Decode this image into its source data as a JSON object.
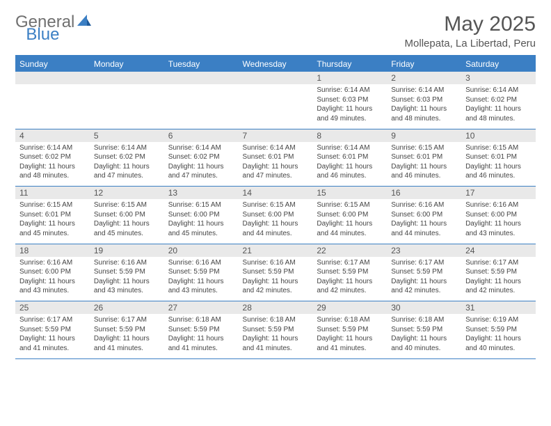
{
  "logo": {
    "gray": "General",
    "blue": "Blue"
  },
  "title": "May 2025",
  "location": "Mollepata, La Libertad, Peru",
  "colors": {
    "accent": "#3b7fc4",
    "header_text": "#ffffff",
    "daynum_bg": "#e9e9e9",
    "text": "#444444",
    "title_text": "#555555"
  },
  "day_headers": [
    "Sunday",
    "Monday",
    "Tuesday",
    "Wednesday",
    "Thursday",
    "Friday",
    "Saturday"
  ],
  "weeks": [
    [
      null,
      null,
      null,
      null,
      {
        "n": "1",
        "sr": "Sunrise: 6:14 AM",
        "ss": "Sunset: 6:03 PM",
        "dl1": "Daylight: 11 hours",
        "dl2": "and 49 minutes."
      },
      {
        "n": "2",
        "sr": "Sunrise: 6:14 AM",
        "ss": "Sunset: 6:03 PM",
        "dl1": "Daylight: 11 hours",
        "dl2": "and 48 minutes."
      },
      {
        "n": "3",
        "sr": "Sunrise: 6:14 AM",
        "ss": "Sunset: 6:02 PM",
        "dl1": "Daylight: 11 hours",
        "dl2": "and 48 minutes."
      }
    ],
    [
      {
        "n": "4",
        "sr": "Sunrise: 6:14 AM",
        "ss": "Sunset: 6:02 PM",
        "dl1": "Daylight: 11 hours",
        "dl2": "and 48 minutes."
      },
      {
        "n": "5",
        "sr": "Sunrise: 6:14 AM",
        "ss": "Sunset: 6:02 PM",
        "dl1": "Daylight: 11 hours",
        "dl2": "and 47 minutes."
      },
      {
        "n": "6",
        "sr": "Sunrise: 6:14 AM",
        "ss": "Sunset: 6:02 PM",
        "dl1": "Daylight: 11 hours",
        "dl2": "and 47 minutes."
      },
      {
        "n": "7",
        "sr": "Sunrise: 6:14 AM",
        "ss": "Sunset: 6:01 PM",
        "dl1": "Daylight: 11 hours",
        "dl2": "and 47 minutes."
      },
      {
        "n": "8",
        "sr": "Sunrise: 6:14 AM",
        "ss": "Sunset: 6:01 PM",
        "dl1": "Daylight: 11 hours",
        "dl2": "and 46 minutes."
      },
      {
        "n": "9",
        "sr": "Sunrise: 6:15 AM",
        "ss": "Sunset: 6:01 PM",
        "dl1": "Daylight: 11 hours",
        "dl2": "and 46 minutes."
      },
      {
        "n": "10",
        "sr": "Sunrise: 6:15 AM",
        "ss": "Sunset: 6:01 PM",
        "dl1": "Daylight: 11 hours",
        "dl2": "and 46 minutes."
      }
    ],
    [
      {
        "n": "11",
        "sr": "Sunrise: 6:15 AM",
        "ss": "Sunset: 6:01 PM",
        "dl1": "Daylight: 11 hours",
        "dl2": "and 45 minutes."
      },
      {
        "n": "12",
        "sr": "Sunrise: 6:15 AM",
        "ss": "Sunset: 6:00 PM",
        "dl1": "Daylight: 11 hours",
        "dl2": "and 45 minutes."
      },
      {
        "n": "13",
        "sr": "Sunrise: 6:15 AM",
        "ss": "Sunset: 6:00 PM",
        "dl1": "Daylight: 11 hours",
        "dl2": "and 45 minutes."
      },
      {
        "n": "14",
        "sr": "Sunrise: 6:15 AM",
        "ss": "Sunset: 6:00 PM",
        "dl1": "Daylight: 11 hours",
        "dl2": "and 44 minutes."
      },
      {
        "n": "15",
        "sr": "Sunrise: 6:15 AM",
        "ss": "Sunset: 6:00 PM",
        "dl1": "Daylight: 11 hours",
        "dl2": "and 44 minutes."
      },
      {
        "n": "16",
        "sr": "Sunrise: 6:16 AM",
        "ss": "Sunset: 6:00 PM",
        "dl1": "Daylight: 11 hours",
        "dl2": "and 44 minutes."
      },
      {
        "n": "17",
        "sr": "Sunrise: 6:16 AM",
        "ss": "Sunset: 6:00 PM",
        "dl1": "Daylight: 11 hours",
        "dl2": "and 43 minutes."
      }
    ],
    [
      {
        "n": "18",
        "sr": "Sunrise: 6:16 AM",
        "ss": "Sunset: 6:00 PM",
        "dl1": "Daylight: 11 hours",
        "dl2": "and 43 minutes."
      },
      {
        "n": "19",
        "sr": "Sunrise: 6:16 AM",
        "ss": "Sunset: 5:59 PM",
        "dl1": "Daylight: 11 hours",
        "dl2": "and 43 minutes."
      },
      {
        "n": "20",
        "sr": "Sunrise: 6:16 AM",
        "ss": "Sunset: 5:59 PM",
        "dl1": "Daylight: 11 hours",
        "dl2": "and 43 minutes."
      },
      {
        "n": "21",
        "sr": "Sunrise: 6:16 AM",
        "ss": "Sunset: 5:59 PM",
        "dl1": "Daylight: 11 hours",
        "dl2": "and 42 minutes."
      },
      {
        "n": "22",
        "sr": "Sunrise: 6:17 AM",
        "ss": "Sunset: 5:59 PM",
        "dl1": "Daylight: 11 hours",
        "dl2": "and 42 minutes."
      },
      {
        "n": "23",
        "sr": "Sunrise: 6:17 AM",
        "ss": "Sunset: 5:59 PM",
        "dl1": "Daylight: 11 hours",
        "dl2": "and 42 minutes."
      },
      {
        "n": "24",
        "sr": "Sunrise: 6:17 AM",
        "ss": "Sunset: 5:59 PM",
        "dl1": "Daylight: 11 hours",
        "dl2": "and 42 minutes."
      }
    ],
    [
      {
        "n": "25",
        "sr": "Sunrise: 6:17 AM",
        "ss": "Sunset: 5:59 PM",
        "dl1": "Daylight: 11 hours",
        "dl2": "and 41 minutes."
      },
      {
        "n": "26",
        "sr": "Sunrise: 6:17 AM",
        "ss": "Sunset: 5:59 PM",
        "dl1": "Daylight: 11 hours",
        "dl2": "and 41 minutes."
      },
      {
        "n": "27",
        "sr": "Sunrise: 6:18 AM",
        "ss": "Sunset: 5:59 PM",
        "dl1": "Daylight: 11 hours",
        "dl2": "and 41 minutes."
      },
      {
        "n": "28",
        "sr": "Sunrise: 6:18 AM",
        "ss": "Sunset: 5:59 PM",
        "dl1": "Daylight: 11 hours",
        "dl2": "and 41 minutes."
      },
      {
        "n": "29",
        "sr": "Sunrise: 6:18 AM",
        "ss": "Sunset: 5:59 PM",
        "dl1": "Daylight: 11 hours",
        "dl2": "and 41 minutes."
      },
      {
        "n": "30",
        "sr": "Sunrise: 6:18 AM",
        "ss": "Sunset: 5:59 PM",
        "dl1": "Daylight: 11 hours",
        "dl2": "and 40 minutes."
      },
      {
        "n": "31",
        "sr": "Sunrise: 6:19 AM",
        "ss": "Sunset: 5:59 PM",
        "dl1": "Daylight: 11 hours",
        "dl2": "and 40 minutes."
      }
    ]
  ]
}
